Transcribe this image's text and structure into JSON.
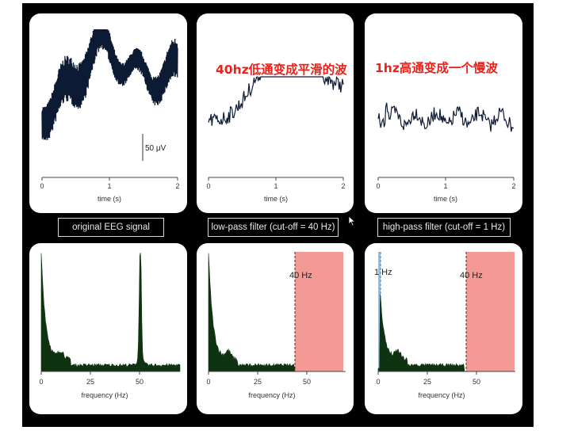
{
  "labels": {
    "original": "original EEG signal",
    "lowpass": "low-pass filter (cut-off = 40 Hz)",
    "highpass": "high-pass filter (cut-off = 1 Hz)"
  },
  "annotations": {
    "lowpass_note": "40hz低通变成平滑的波",
    "highpass_note": "1hz高通变成一个慢波"
  },
  "time_axis": {
    "label": "time (s)",
    "ticks": [
      "0",
      "1",
      "2"
    ]
  },
  "freq_axis": {
    "label": "frequency (Hz)",
    "ticks": [
      "0",
      "25",
      "50"
    ]
  },
  "scale_bar": {
    "label": "50 μV"
  },
  "cutoffs": {
    "lowpass_label": "40 Hz",
    "highpass_label": "1 Hz"
  },
  "colors": {
    "background": "#000000",
    "panel": "#ffffff",
    "signal": "#0d1a33",
    "spectrum": "#0f3311",
    "stopband": "#f39a94",
    "passband_line": "#3b82c4",
    "annotation": "#e8231c"
  },
  "chart_data": [
    {
      "type": "line",
      "panel": "original EEG signal",
      "xlabel": "time (s)",
      "xlim": [
        0,
        2
      ]
    },
    {
      "type": "line",
      "panel": "low-pass filter (cut-off = 40 Hz)",
      "xlabel": "time (s)",
      "xlim": [
        0,
        2
      ]
    },
    {
      "type": "line",
      "panel": "high-pass filter (cut-off = 1 Hz)",
      "xlabel": "time (s)",
      "xlim": [
        0,
        2
      ]
    },
    {
      "type": "area",
      "panel": "original spectrum",
      "xlabel": "frequency (Hz)",
      "xlim": [
        0,
        70
      ],
      "peak_hz": 50
    },
    {
      "type": "area",
      "panel": "low-pass spectrum",
      "xlabel": "frequency (Hz)",
      "xlim": [
        0,
        70
      ],
      "cutoff_hz": 40
    },
    {
      "type": "area",
      "panel": "high-pass spectrum",
      "xlabel": "frequency (Hz)",
      "xlim": [
        0,
        70
      ],
      "cutoff_hz": [
        1,
        40
      ]
    }
  ]
}
